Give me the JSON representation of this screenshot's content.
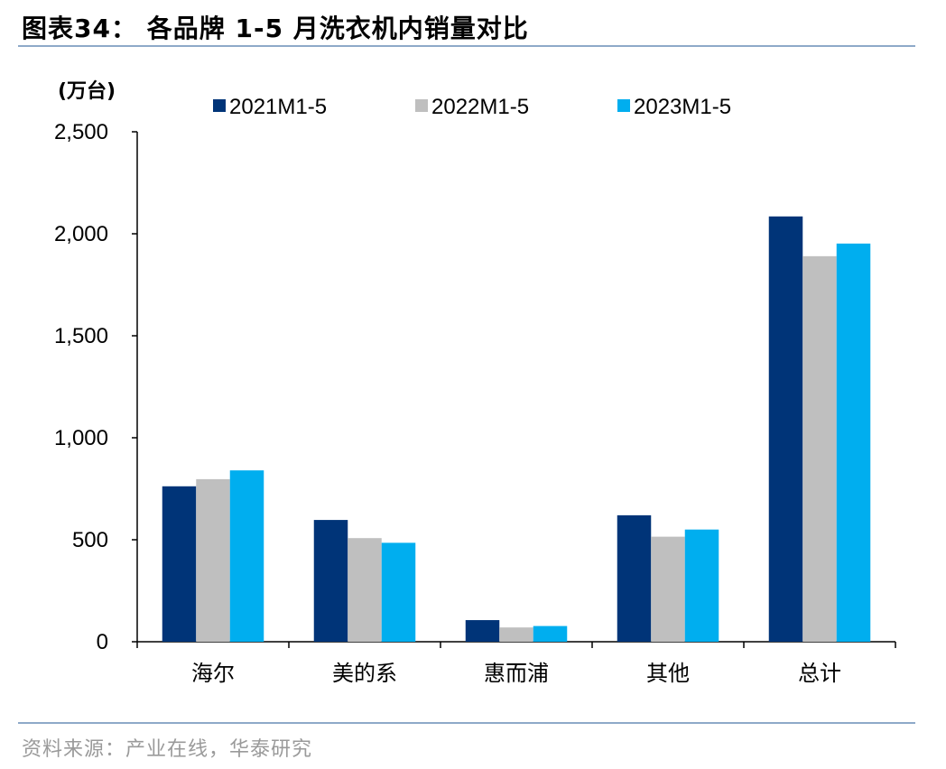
{
  "header": {
    "title": "图表34：  各品牌 1-5 月洗衣机内销量对比"
  },
  "footer": {
    "source": "资料来源：产业在线，华泰研究"
  },
  "chart_data": {
    "type": "bar",
    "ylabel": "(万台)",
    "ylim": [
      0,
      2500
    ],
    "yticks": [
      0,
      500,
      1000,
      1500,
      2000,
      2500
    ],
    "ytick_labels": [
      "0",
      "500",
      "1,000",
      "1,500",
      "2,000",
      "2,500"
    ],
    "categories": [
      "海尔",
      "美的系",
      "惠而浦",
      "其他",
      "总计"
    ],
    "legend_position": "top",
    "grid": false,
    "series": [
      {
        "name": "2021M1-5",
        "color": "#003478",
        "values": [
          762,
          597,
          106,
          620,
          2085
        ]
      },
      {
        "name": "2022M1-5",
        "color": "#bfbfbf",
        "values": [
          797,
          508,
          70,
          515,
          1890
        ]
      },
      {
        "name": "2023M1-5",
        "color": "#00aeef",
        "values": [
          840,
          485,
          77,
          550,
          1952
        ]
      }
    ]
  }
}
